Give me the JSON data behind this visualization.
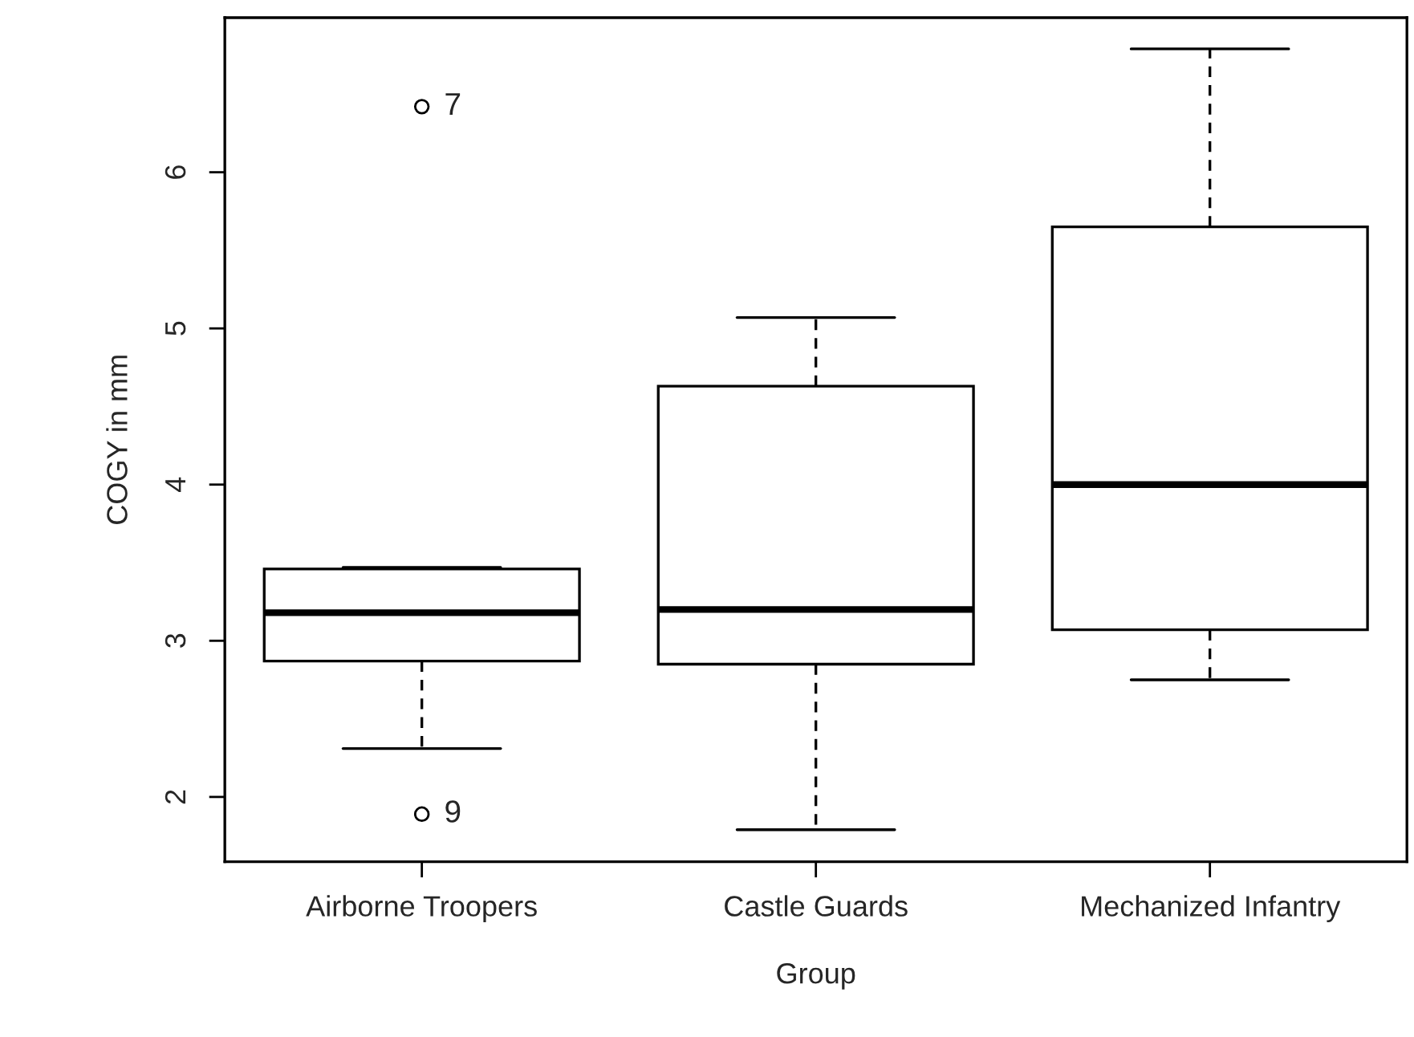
{
  "chart_data": {
    "type": "box",
    "xlabel": "Group",
    "ylabel": "COGY in mm",
    "categories": [
      "Airborne Troopers",
      "Castle Guards",
      "Mechanized Infantry"
    ],
    "boxes": [
      {
        "low": 2.31,
        "q1": 2.87,
        "median": 3.18,
        "q3": 3.46,
        "high": 3.47,
        "outliers": [
          6.42,
          1.89
        ]
      },
      {
        "low": 1.79,
        "q1": 2.85,
        "median": 3.2,
        "q3": 4.63,
        "high": 5.07
      },
      {
        "low": 2.75,
        "q1": 3.07,
        "median": 4.0,
        "q3": 5.65,
        "high": 6.79
      }
    ],
    "ylim": [
      1.585,
      6.99
    ],
    "yticks": [
      2,
      3,
      4,
      5,
      6
    ],
    "annotations": [
      "7",
      "9"
    ]
  }
}
